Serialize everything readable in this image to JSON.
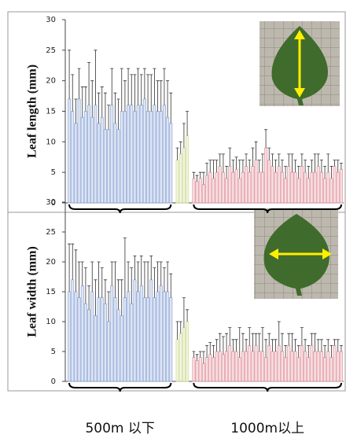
{
  "chart_data": [
    {
      "type": "bar",
      "y_label": "Leaf length (mm)",
      "ylim": [
        0,
        30
      ],
      "yticks": [
        0,
        5,
        10,
        15,
        20,
        25,
        30
      ],
      "groups": [
        {
          "color": "#9db3dc",
          "values": [
            17,
            15,
            13,
            17,
            14,
            15,
            16,
            14,
            16,
            13,
            14,
            12,
            12,
            16,
            13,
            12,
            15,
            15,
            16,
            16,
            15,
            16,
            16,
            17,
            15,
            15,
            16,
            15,
            15,
            16,
            14,
            13
          ],
          "errors": [
            8,
            6,
            4,
            5,
            5,
            4,
            7,
            6,
            9,
            5,
            5,
            6,
            4,
            6,
            5,
            5,
            7,
            5,
            6,
            5,
            6,
            6,
            5,
            5,
            6,
            6,
            6,
            5,
            5,
            6,
            6,
            5
          ]
        },
        {
          "color": "#d5e0a2",
          "values": [
            7,
            8,
            9,
            11
          ],
          "errors": [
            2,
            2,
            4,
            4
          ]
        },
        {
          "color": "#e6a2ab",
          "values": [
            4,
            3.5,
            4,
            3,
            4.5,
            5,
            4,
            5,
            6,
            5,
            4,
            6,
            5,
            5.5,
            4,
            5,
            6,
            5,
            6,
            7,
            5,
            5,
            9,
            7,
            6,
            5,
            6,
            5,
            4,
            6,
            5,
            5,
            4,
            6,
            5,
            4,
            5,
            5,
            6,
            5,
            4,
            5,
            4,
            6,
            5,
            5.5
          ],
          "errors": [
            1,
            1,
            1,
            2,
            2,
            2,
            3,
            2,
            2,
            3,
            2,
            3,
            2,
            2,
            3,
            2,
            2,
            2,
            3,
            3,
            2,
            3,
            3,
            2,
            2,
            2,
            2,
            2,
            2,
            2,
            3,
            2,
            2,
            2,
            2,
            2,
            2,
            3,
            2,
            2,
            2,
            3,
            2,
            1,
            2,
            1
          ]
        }
      ]
    },
    {
      "type": "bar",
      "y_label": "Leaf width (mm)",
      "ylim": [
        0,
        30
      ],
      "yticks": [
        0,
        5,
        10,
        15,
        20,
        25,
        30
      ],
      "groups": [
        {
          "color": "#9db3dc",
          "values": [
            15,
            17,
            15,
            14,
            16,
            13,
            12,
            15,
            11,
            14,
            14,
            13,
            10,
            16,
            14,
            12,
            11,
            14,
            15,
            13,
            17,
            15,
            16,
            14,
            14,
            17,
            14,
            15,
            16,
            15,
            15,
            14
          ],
          "errors": [
            8,
            6,
            7,
            6,
            4,
            6,
            4,
            5,
            6,
            6,
            5,
            4,
            5,
            4,
            6,
            5,
            6,
            10,
            5,
            6,
            4,
            5,
            5,
            6,
            6,
            4,
            5,
            5,
            4,
            4,
            5,
            4
          ]
        },
        {
          "color": "#d5e0a2",
          "values": [
            7,
            8,
            9,
            10
          ],
          "errors": [
            3,
            2,
            5,
            2
          ]
        },
        {
          "color": "#e6a2ab",
          "values": [
            4,
            3.5,
            4,
            3,
            4,
            4.5,
            4,
            5,
            5,
            4.5,
            5,
            6,
            5,
            5,
            4,
            5,
            5,
            6,
            5,
            6,
            5,
            5,
            4,
            6,
            5,
            5,
            6,
            5,
            4,
            6,
            5,
            5,
            4,
            6,
            5,
            4,
            6,
            5,
            5,
            5,
            4,
            5,
            4,
            6,
            5,
            5
          ],
          "errors": [
            1,
            1,
            1,
            2,
            2,
            2,
            2,
            2,
            3,
            3,
            3,
            3,
            2,
            2,
            5,
            3,
            2,
            3,
            3,
            2,
            3,
            4,
            3,
            2,
            2,
            2,
            4,
            3,
            2,
            2,
            3,
            2,
            2,
            3,
            2,
            2,
            2,
            3,
            2,
            2,
            2,
            2,
            2,
            1,
            2,
            1
          ]
        }
      ]
    }
  ],
  "group_labels": [
    "500m 以下",
    "1000m以上"
  ]
}
